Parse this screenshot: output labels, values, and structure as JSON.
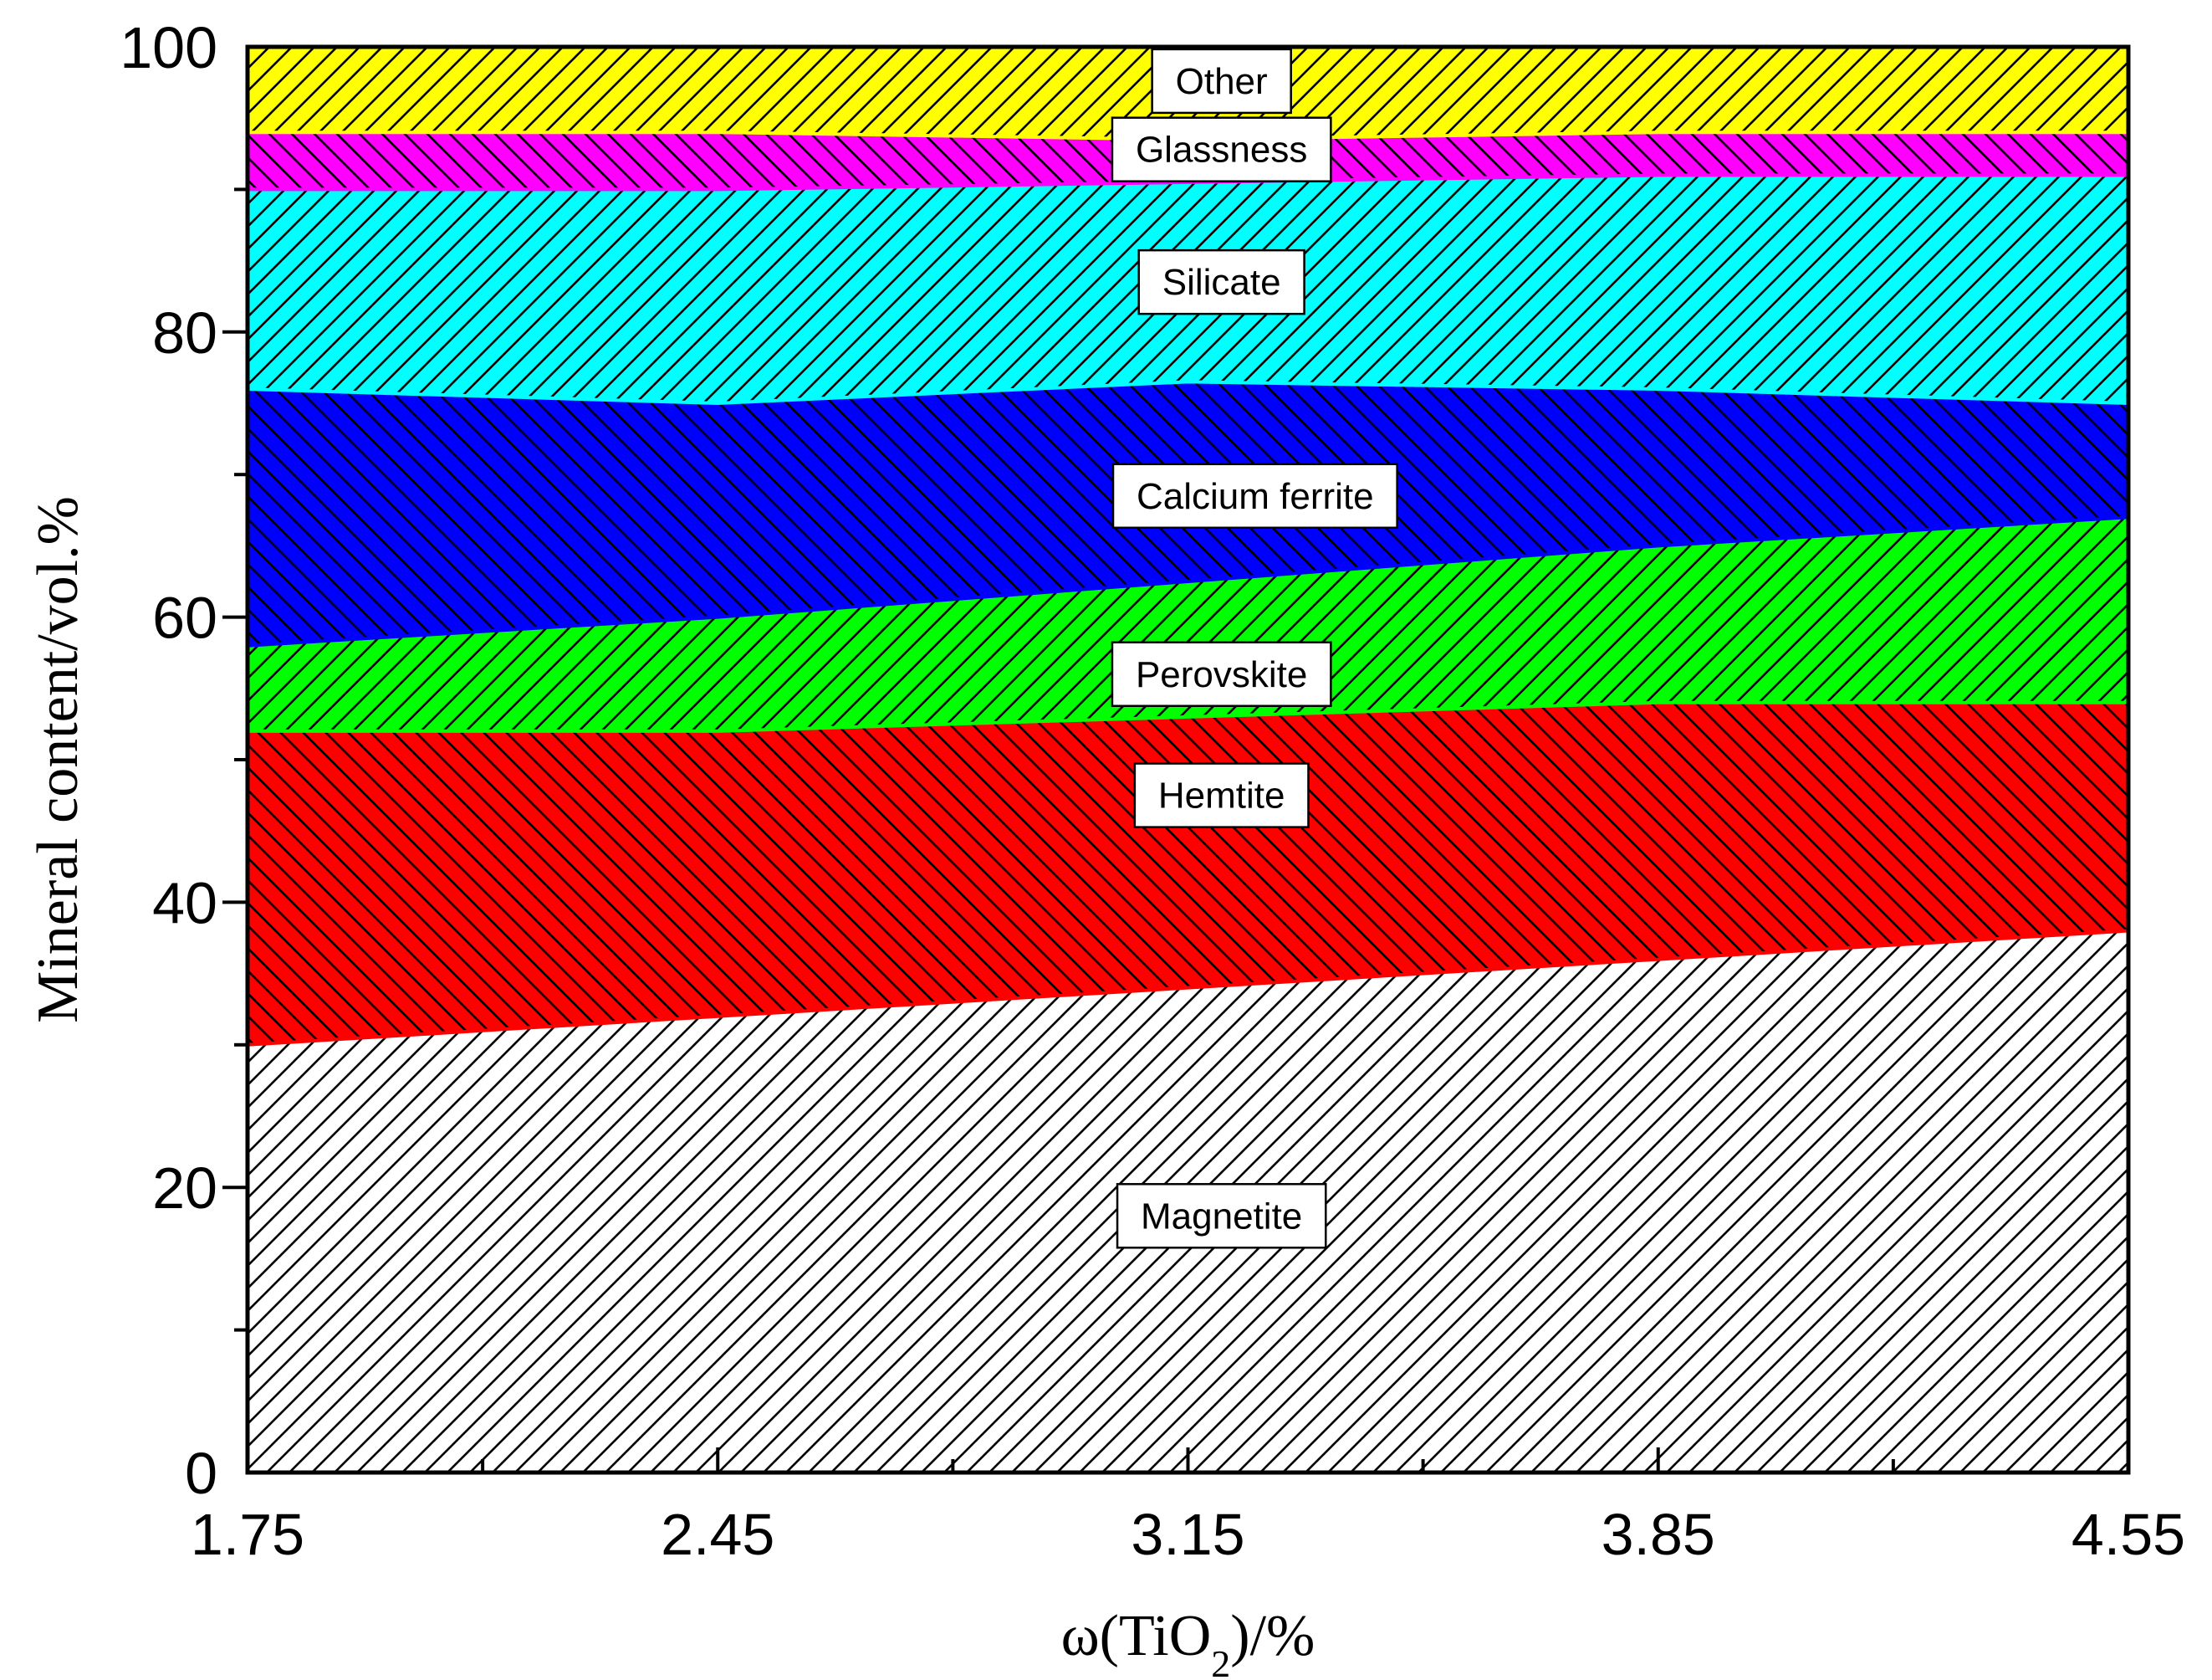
{
  "chart_data": {
    "type": "area",
    "stacked": true,
    "title": "",
    "xlabel": "ω(TiO2)/%",
    "xlabel_parts": {
      "prefix": "ω(TiO",
      "subscript": "2",
      "suffix": ")/%"
    },
    "ylabel": "Mineral content/vol.%",
    "x": [
      1.75,
      2.45,
      3.15,
      3.85,
      4.55
    ],
    "xlim": [
      1.75,
      4.55
    ],
    "ylim": [
      0,
      100
    ],
    "x_ticks": [
      1.75,
      2.45,
      3.15,
      3.85,
      4.55
    ],
    "x_tick_labels": [
      "1.75",
      "2.45",
      "3.15",
      "3.85",
      "4.55"
    ],
    "y_ticks": [
      0,
      20,
      40,
      60,
      80,
      100
    ],
    "y_tick_labels": [
      "0",
      "20",
      "40",
      "60",
      "80",
      "100"
    ],
    "grid": false,
    "series": [
      {
        "name": "Magnetite",
        "values": [
          30,
          32,
          34,
          36,
          38
        ],
        "color": "#ffffff",
        "hatch": "forward"
      },
      {
        "name": "Hemtite",
        "values": [
          22,
          20,
          19,
          18,
          16
        ],
        "color": "#ff0000",
        "hatch": "backward"
      },
      {
        "name": "Perovskite",
        "values": [
          6,
          8,
          9.5,
          11,
          13
        ],
        "color": "#00ff00",
        "hatch": "forward"
      },
      {
        "name": "Calcium ferrite",
        "values": [
          18,
          15,
          14,
          11,
          8
        ],
        "color": "#0000ff",
        "hatch": "backward"
      },
      {
        "name": "Silicate",
        "values": [
          14,
          15,
          14,
          15,
          16
        ],
        "color": "#00ffff",
        "hatch": "forward"
      },
      {
        "name": "Glassness",
        "values": [
          4,
          4,
          3,
          3,
          3
        ],
        "color": "#ff00ff",
        "hatch": "backward"
      },
      {
        "name": "Other",
        "values": [
          6,
          6,
          6.5,
          6,
          6
        ],
        "color": "#ffff00",
        "hatch": "forward"
      }
    ],
    "annotations": [
      {
        "text": "Magnetite",
        "series": "Magnetite",
        "x": 3.2,
        "y": 18
      },
      {
        "text": "Hemtite",
        "series": "Hemtite",
        "x": 3.2,
        "y": 47.5
      },
      {
        "text": "Perovskite",
        "series": "Perovskite",
        "x": 3.2,
        "y": 56
      },
      {
        "text": "Calcium ferrite",
        "series": "Calcium ferrite",
        "x": 3.25,
        "y": 68.5
      },
      {
        "text": "Silicate",
        "series": "Silicate",
        "x": 3.2,
        "y": 83.5
      },
      {
        "text": "Glassness",
        "series": "Glassness",
        "x": 3.2,
        "y": 92.8
      },
      {
        "text": "Other",
        "series": "Other",
        "x": 3.2,
        "y": 97.6
      }
    ]
  }
}
